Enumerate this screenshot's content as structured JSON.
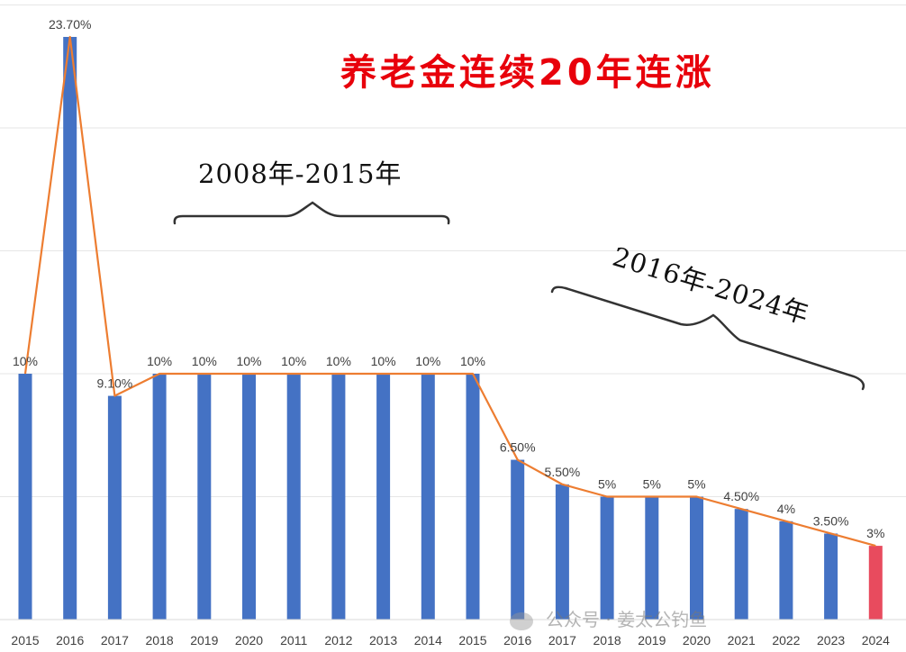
{
  "title": "养老金连续20年连涨",
  "annotations": {
    "period1": "2008年-2015年",
    "period2": "2016年-2024年"
  },
  "watermark": "公众号 · 姜太公钓鱼",
  "colors": {
    "bar": "#4472c4",
    "bar_highlight": "#e84b5e",
    "line": "#ed7d31",
    "title": "#e8000b"
  },
  "chart_data": {
    "type": "bar",
    "categories": [
      "2015",
      "2016",
      "2017",
      "2018",
      "2019",
      "2020",
      "2011",
      "2012",
      "2013",
      "2014",
      "2015",
      "2016",
      "2017",
      "2018",
      "2019",
      "2020",
      "2021",
      "2022",
      "2023",
      "2024"
    ],
    "values": [
      10,
      23.7,
      9.1,
      10,
      10,
      10,
      10,
      10,
      10,
      10,
      10,
      6.5,
      5.5,
      5,
      5,
      5,
      4.5,
      4,
      3.5,
      3
    ],
    "data_labels": [
      "10%",
      "23.70%",
      "9.10%",
      "10%",
      "10%",
      "10%",
      "10%",
      "10%",
      "10%",
      "10%",
      "10%",
      "6.50%",
      "5.50%",
      "5%",
      "5%",
      "5%",
      "4.50%",
      "4%",
      "3.50%",
      "3%"
    ],
    "highlight_index": 19,
    "overlay_line": true,
    "ylim": [
      0,
      25
    ],
    "grid": true,
    "title": "养老金连续20年连涨",
    "xlabel": "",
    "ylabel": ""
  }
}
